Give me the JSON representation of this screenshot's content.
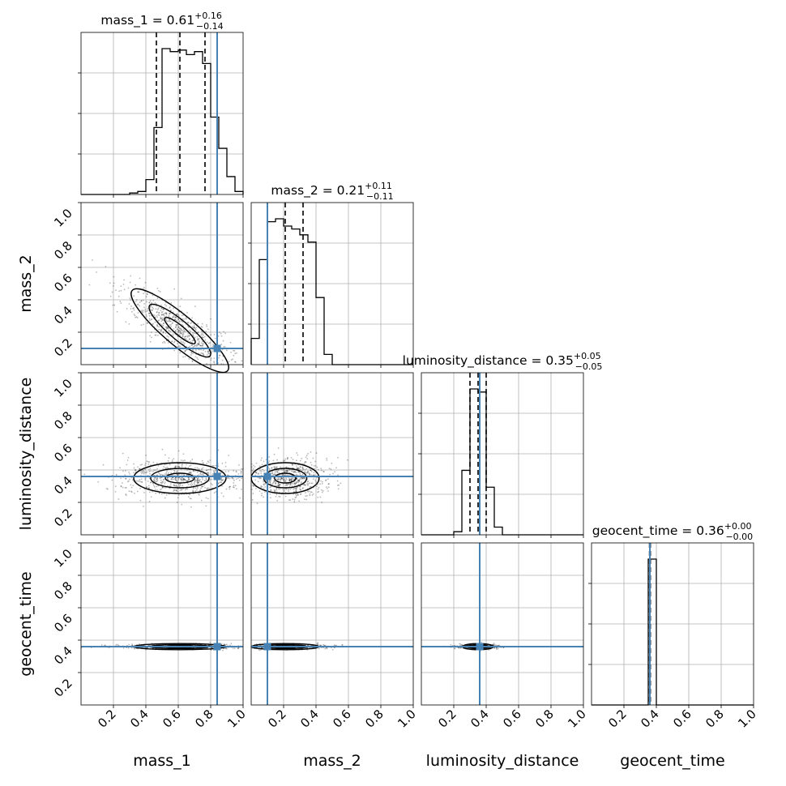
{
  "chart_data": {
    "type": "corner",
    "parameters": [
      "mass_1",
      "mass_2",
      "luminosity_distance",
      "geocent_time"
    ],
    "axis_range": [
      0,
      1
    ],
    "tick_values": [
      0.2,
      0.4,
      0.6,
      0.8,
      1.0
    ],
    "tick_labels": [
      "0.2",
      "0.4",
      "0.6",
      "0.8",
      "1.0"
    ],
    "truth": {
      "mass_1": 0.84,
      "mass_2": 0.1,
      "luminosity_distance": 0.36,
      "geocent_time": 0.36
    },
    "titles": [
      {
        "param": "mass_1",
        "prefix": "mass_1 = ",
        "median": "0.61",
        "plus": "+0.16",
        "minus": "−0.14"
      },
      {
        "param": "mass_2",
        "prefix": "mass_2 = ",
        "median": "0.21",
        "plus": "+0.11",
        "minus": "−0.11"
      },
      {
        "param": "luminosity_distance",
        "prefix": "luminosity_distance = ",
        "median": "0.35",
        "plus": "+0.05",
        "minus": "−0.05"
      },
      {
        "param": "geocent_time",
        "prefix": "geocent_time = ",
        "median": "0.36",
        "plus": "+0.00",
        "minus": "−0.00"
      }
    ],
    "quantiles": {
      "mass_1": [
        0.465,
        0.61,
        0.765
      ],
      "mass_2": [
        0.1,
        0.21,
        0.32
      ],
      "luminosity_distance": [
        0.3,
        0.35,
        0.4
      ],
      "geocent_time": [
        0.358,
        0.36,
        0.363
      ]
    },
    "histograms": {
      "mass_1": {
        "bin_width": 0.05,
        "bin_start": 0.0,
        "counts": [
          0,
          0,
          0,
          0,
          0,
          0,
          0.01,
          0.02,
          0.1,
          0.45,
          0.98,
          0.96,
          0.97,
          0.94,
          0.96,
          0.88,
          0.52,
          0.31,
          0.12,
          0.02
        ]
      },
      "mass_2": {
        "bin_width": 0.05,
        "bin_start": 0.0,
        "counts": [
          0.18,
          0.72,
          0.98,
          1.0,
          0.95,
          0.93,
          0.89,
          0.84,
          0.46,
          0.07,
          0,
          0,
          0,
          0,
          0,
          0,
          0,
          0,
          0,
          0
        ]
      },
      "luminosity_distance": {
        "bin_width": 0.05,
        "bin_start": 0.0,
        "counts": [
          0,
          0,
          0,
          0,
          0.02,
          0.42,
          0.95,
          0.93,
          0.31,
          0.05,
          0,
          0,
          0,
          0,
          0,
          0,
          0,
          0,
          0,
          0
        ]
      },
      "geocent_time": {
        "bin_width": 0.05,
        "bin_start": 0.0,
        "counts": [
          0,
          0,
          0,
          0,
          0,
          0,
          0,
          1.0,
          0,
          0,
          0,
          0,
          0,
          0,
          0,
          0,
          0,
          0,
          0,
          0
        ]
      }
    }
  }
}
